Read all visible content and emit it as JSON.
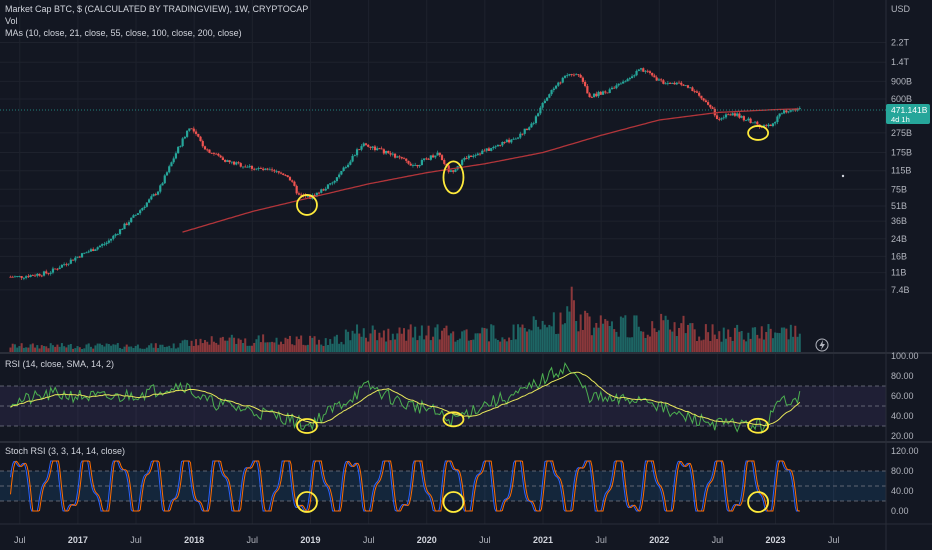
{
  "main_legend": {
    "title": "Market Cap BTC, $ (CALCULATED BY TRADINGVIEW), 1W, CRYPTOCAP",
    "vol": "Vol",
    "mas": "MAs (10, close, 21, close, 55, close, 100, close, 200, close)"
  },
  "rsi_legend": "RSI (14, close, SMA, 14, 2)",
  "stoch_legend": "Stoch RSI (3, 3, 14, 14, close)",
  "currency_label": "USD",
  "price_tag": {
    "value": "471.141B",
    "countdown": "4d 1h"
  },
  "price_axis": [
    "2.2T",
    "1.4T",
    "900B",
    "600B",
    "275B",
    "175B",
    "115B",
    "75B",
    "51B",
    "36B",
    "24B",
    "16B",
    "11B",
    "7.4B"
  ],
  "rsi_axis": [
    "100.00",
    "80.00",
    "60.00",
    "40.00",
    "20.00"
  ],
  "stoch_axis": [
    "120.00",
    "80.00",
    "40.00",
    "0.00"
  ],
  "time_axis": [
    {
      "label": "Jul",
      "bold": false
    },
    {
      "label": "2017",
      "bold": true
    },
    {
      "label": "Jul",
      "bold": false
    },
    {
      "label": "2018",
      "bold": true
    },
    {
      "label": "Jul",
      "bold": false
    },
    {
      "label": "2019",
      "bold": true
    },
    {
      "label": "Jul",
      "bold": false
    },
    {
      "label": "2020",
      "bold": true
    },
    {
      "label": "Jul",
      "bold": false
    },
    {
      "label": "2021",
      "bold": true
    },
    {
      "label": "Jul",
      "bold": false
    },
    {
      "label": "2022",
      "bold": true
    },
    {
      "label": "Jul",
      "bold": false
    },
    {
      "label": "2023",
      "bold": true
    },
    {
      "label": "Jul",
      "bold": false
    }
  ],
  "colors": {
    "background": "#131722",
    "up": "#26a69a",
    "down": "#ef5350",
    "ma": "#b2353a",
    "rsi": "#4caf50",
    "rsi_ma": "#e6e65a",
    "stoch_k": "#2962ff",
    "stoch_d": "#ff6d00",
    "band_rsi": "#7e57c2",
    "band_stoch": "#2196f3",
    "marker": "#ffeb3b",
    "tag": "#26a69a"
  },
  "chart_data": {
    "type": "candlestick",
    "note_x": "weekly bars Jul 2016 – Mar 2023",
    "price_waypoints_B": [
      [
        2016.5,
        10
      ],
      [
        2016.75,
        11
      ],
      [
        2017.0,
        16
      ],
      [
        2017.25,
        22
      ],
      [
        2017.5,
        42
      ],
      [
        2017.7,
        75
      ],
      [
        2017.85,
        180
      ],
      [
        2017.96,
        320
      ],
      [
        2018.1,
        190
      ],
      [
        2018.3,
        140
      ],
      [
        2018.55,
        120
      ],
      [
        2018.8,
        105
      ],
      [
        2018.9,
        65
      ],
      [
        2019.0,
        62
      ],
      [
        2019.2,
        88
      ],
      [
        2019.45,
        215
      ],
      [
        2019.7,
        165
      ],
      [
        2019.9,
        130
      ],
      [
        2020.1,
        175
      ],
      [
        2020.2,
        110
      ],
      [
        2020.35,
        160
      ],
      [
        2020.55,
        190
      ],
      [
        2020.8,
        260
      ],
      [
        2020.92,
        360
      ],
      [
        2021.05,
        680
      ],
      [
        2021.2,
        1050
      ],
      [
        2021.3,
        1100
      ],
      [
        2021.4,
        650
      ],
      [
        2021.55,
        700
      ],
      [
        2021.7,
        900
      ],
      [
        2021.85,
        1200
      ],
      [
        2022.0,
        900
      ],
      [
        2022.2,
        850
      ],
      [
        2022.4,
        580
      ],
      [
        2022.5,
        390
      ],
      [
        2022.65,
        420
      ],
      [
        2022.85,
        330
      ],
      [
        2022.97,
        320
      ],
      [
        2023.05,
        450
      ],
      [
        2023.2,
        470
      ]
    ],
    "ma200_waypoints_B": [
      [
        2017.9,
        28
      ],
      [
        2018.5,
        45
      ],
      [
        2019.0,
        62
      ],
      [
        2019.5,
        85
      ],
      [
        2020.0,
        110
      ],
      [
        2020.5,
        135
      ],
      [
        2021.0,
        175
      ],
      [
        2021.5,
        260
      ],
      [
        2022.0,
        370
      ],
      [
        2022.5,
        440
      ],
      [
        2023.0,
        470
      ],
      [
        2023.2,
        478
      ]
    ],
    "rsi_waypoints": [
      [
        2016.5,
        55
      ],
      [
        2016.8,
        62
      ],
      [
        2017.0,
        60
      ],
      [
        2017.3,
        58
      ],
      [
        2017.6,
        64
      ],
      [
        2017.9,
        72
      ],
      [
        2018.1,
        55
      ],
      [
        2018.5,
        45
      ],
      [
        2018.8,
        38
      ],
      [
        2018.97,
        30
      ],
      [
        2019.3,
        55
      ],
      [
        2019.5,
        70
      ],
      [
        2019.8,
        52
      ],
      [
        2020.0,
        48
      ],
      [
        2020.2,
        35
      ],
      [
        2020.5,
        52
      ],
      [
        2020.8,
        62
      ],
      [
        2021.05,
        80
      ],
      [
        2021.2,
        90
      ],
      [
        2021.4,
        60
      ],
      [
        2021.6,
        55
      ],
      [
        2021.9,
        58
      ],
      [
        2022.1,
        42
      ],
      [
        2022.5,
        32
      ],
      [
        2022.9,
        30
      ],
      [
        2023.05,
        55
      ],
      [
        2023.2,
        60
      ]
    ],
    "stoch_cycles_per_year": 3.5,
    "annotations": [
      {
        "pane": "price",
        "x": 2018.97
      },
      {
        "pane": "price",
        "x": 2020.23
      },
      {
        "pane": "price",
        "x": 2022.85
      },
      {
        "pane": "rsi",
        "x": 2018.97
      },
      {
        "pane": "rsi",
        "x": 2020.23
      },
      {
        "pane": "rsi",
        "x": 2022.85
      },
      {
        "pane": "stoch",
        "x": 2018.97
      },
      {
        "pane": "stoch",
        "x": 2020.23
      },
      {
        "pane": "stoch",
        "x": 2022.85
      }
    ],
    "yscale": "log"
  }
}
